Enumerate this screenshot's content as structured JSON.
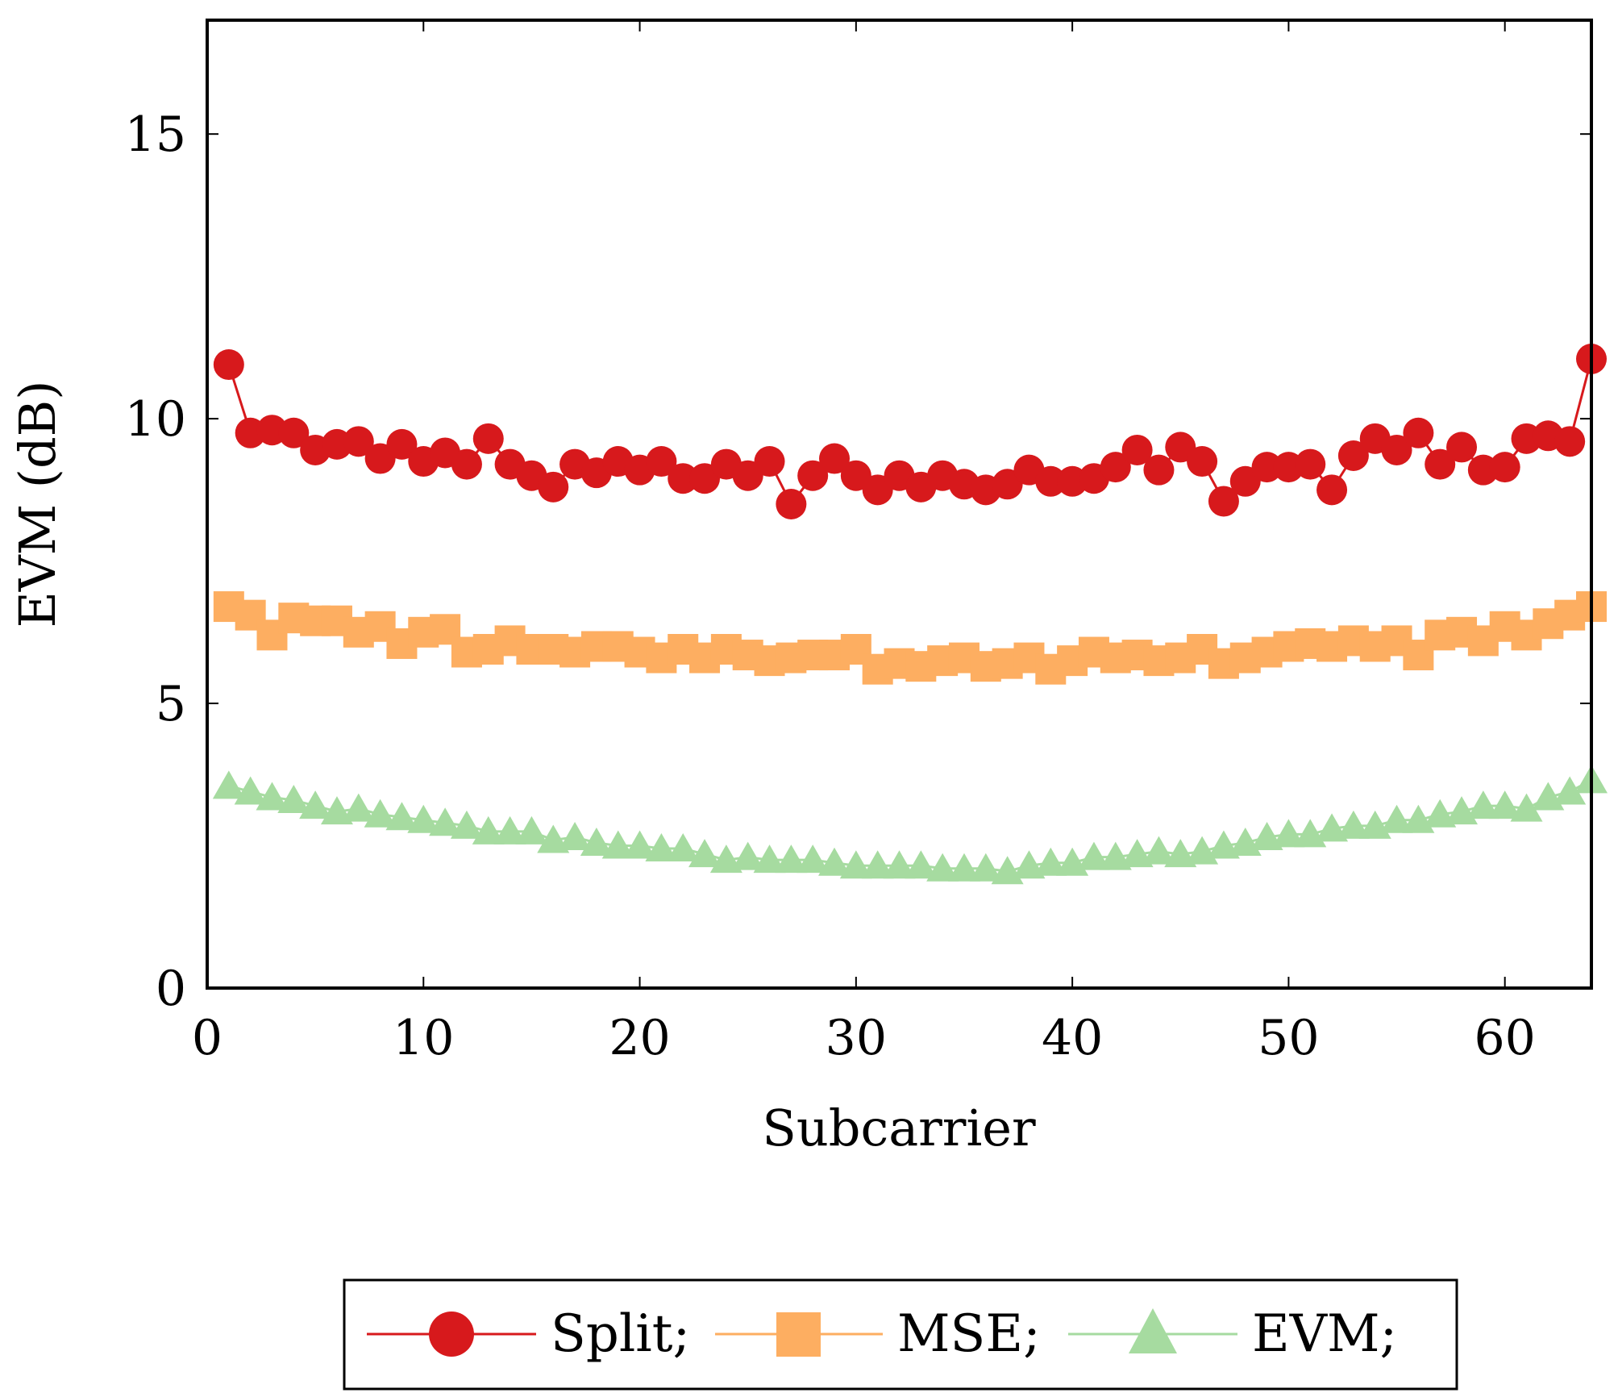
{
  "chart_data": {
    "type": "line",
    "title": "",
    "xlabel": "Subcarrier",
    "ylabel": "EVM (dB)",
    "xlim": [
      0,
      64
    ],
    "ylim": [
      0,
      17
    ],
    "xticks": [
      0,
      10,
      20,
      30,
      40,
      50,
      60
    ],
    "yticks": [
      0,
      5,
      10,
      15
    ],
    "grid": false,
    "legend_position": "bottom-center",
    "x": [
      1,
      2,
      3,
      4,
      5,
      6,
      7,
      8,
      9,
      10,
      11,
      12,
      13,
      14,
      15,
      16,
      17,
      18,
      19,
      20,
      21,
      22,
      23,
      24,
      25,
      26,
      27,
      28,
      29,
      30,
      31,
      32,
      33,
      34,
      35,
      36,
      37,
      38,
      39,
      40,
      41,
      42,
      43,
      44,
      45,
      46,
      47,
      48,
      49,
      50,
      51,
      52,
      53,
      54,
      55,
      56,
      57,
      58,
      59,
      60,
      61,
      62,
      63,
      64
    ],
    "series": [
      {
        "name": "Split;",
        "color": "#d7191c",
        "marker": "circle",
        "values": [
          10.95,
          9.75,
          9.8,
          9.75,
          9.45,
          9.55,
          9.6,
          9.3,
          9.55,
          9.25,
          9.4,
          9.2,
          9.65,
          9.2,
          9.0,
          8.8,
          9.2,
          9.05,
          9.25,
          9.1,
          9.25,
          8.95,
          8.95,
          9.2,
          9.0,
          9.25,
          8.5,
          9.0,
          9.3,
          9.0,
          8.75,
          9.0,
          8.8,
          9.0,
          8.85,
          8.75,
          8.85,
          9.1,
          8.9,
          8.9,
          8.95,
          9.15,
          9.45,
          9.1,
          9.5,
          9.25,
          8.55,
          8.9,
          9.15,
          9.15,
          9.2,
          8.75,
          9.35,
          9.65,
          9.45,
          9.75,
          9.2,
          9.5,
          9.1,
          9.15,
          9.65,
          9.7,
          9.6,
          11.05
        ]
      },
      {
        "name": "MSE;",
        "color": "#fdae61",
        "marker": "square",
        "values": [
          6.7,
          6.55,
          6.2,
          6.5,
          6.45,
          6.45,
          6.25,
          6.35,
          6.05,
          6.25,
          6.3,
          5.9,
          5.95,
          6.1,
          5.95,
          5.95,
          5.9,
          6.0,
          6.0,
          5.9,
          5.8,
          5.95,
          5.8,
          5.95,
          5.85,
          5.75,
          5.8,
          5.85,
          5.85,
          5.95,
          5.6,
          5.7,
          5.65,
          5.75,
          5.8,
          5.65,
          5.7,
          5.8,
          5.6,
          5.75,
          5.9,
          5.8,
          5.85,
          5.75,
          5.8,
          5.95,
          5.7,
          5.8,
          5.9,
          6.0,
          6.05,
          6.0,
          6.1,
          6.0,
          6.1,
          5.85,
          6.2,
          6.25,
          6.1,
          6.35,
          6.2,
          6.4,
          6.55,
          6.7
        ]
      },
      {
        "name": "EVM;",
        "color": "#a6dba0",
        "marker": "triangle",
        "values": [
          3.55,
          3.45,
          3.35,
          3.3,
          3.2,
          3.1,
          3.15,
          3.05,
          3.0,
          2.95,
          2.9,
          2.85,
          2.75,
          2.75,
          2.75,
          2.6,
          2.65,
          2.55,
          2.5,
          2.5,
          2.45,
          2.45,
          2.35,
          2.25,
          2.3,
          2.25,
          2.25,
          2.25,
          2.2,
          2.15,
          2.15,
          2.15,
          2.15,
          2.1,
          2.1,
          2.1,
          2.05,
          2.15,
          2.2,
          2.2,
          2.3,
          2.3,
          2.35,
          2.4,
          2.35,
          2.4,
          2.5,
          2.55,
          2.65,
          2.7,
          2.7,
          2.8,
          2.85,
          2.85,
          2.95,
          2.95,
          3.05,
          3.1,
          3.2,
          3.2,
          3.15,
          3.35,
          3.45,
          3.65
        ]
      }
    ]
  }
}
